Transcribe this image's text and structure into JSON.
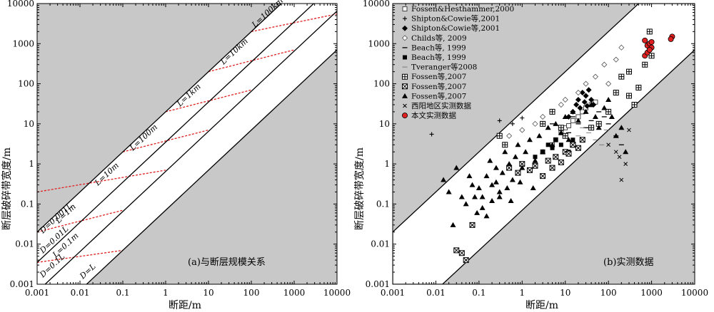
{
  "chart_data": [
    {
      "type": "line",
      "xlabel": "断距/m",
      "ylabel": "断层破碎带宽度/m",
      "xscale": "log",
      "yscale": "log",
      "xlim": [
        0.001,
        10000
      ],
      "ylim": [
        0.001,
        10000
      ],
      "ticks": [
        "0.001",
        "0.01",
        "0.1",
        "1",
        "10",
        "100",
        "1000",
        "10000"
      ],
      "caption": "(a)与断层规模关系",
      "colors": {
        "background": "#c8c8c8",
        "band": "#ffffff",
        "line": "#000000",
        "dashed": "#e02020"
      },
      "boundary_lines": [
        {
          "label": "D=0.001L",
          "ratio": 20,
          "x_range": [
            0.001,
            1000
          ]
        },
        {
          "label": "D=0.01L",
          "ratio": 3.5,
          "x_range": [
            0.001,
            3000
          ]
        },
        {
          "label": "D=0.1L",
          "ratio": 0.65,
          "x_range": [
            0.001,
            10000
          ]
        },
        {
          "label": "D=L",
          "ratio": 0.07,
          "x_range": [
            0.014,
            10000
          ]
        }
      ],
      "length_lines": [
        {
          "label": "L=1m",
          "x": [
            0.001,
            0.1
          ],
          "y": [
            0.02,
            0.07
          ]
        },
        {
          "label": "L=0.1m",
          "x": [
            0.001,
            0.1
          ],
          "y": [
            0.0035,
            0.007
          ]
        },
        {
          "label": "L=10m",
          "x": [
            0.001,
            1
          ],
          "y": [
            0.2,
            0.7
          ]
        },
        {
          "label": "L=100m",
          "x": [
            0.1,
            10
          ],
          "y": [
            2,
            7
          ]
        },
        {
          "label": "L=1km",
          "x": [
            1,
            100
          ],
          "y": [
            20,
            70
          ]
        },
        {
          "label": "L=10km",
          "x": [
            10,
            1000
          ],
          "y": [
            200,
            700
          ]
        },
        {
          "label": "L=100km",
          "x": [
            100,
            10000
          ],
          "y": [
            2000,
            5500
          ]
        }
      ]
    },
    {
      "type": "scatter",
      "xlabel": "断距/m",
      "ylabel": "断层破碎带宽度/m",
      "xscale": "log",
      "yscale": "log",
      "xlim": [
        0.001,
        10000
      ],
      "ylim": [
        0.001,
        10000
      ],
      "ticks": [
        "0.001",
        "0.01",
        "0.1",
        "1",
        "10",
        "100",
        "1000",
        "10000"
      ],
      "caption": "(b)实测数据",
      "colors": {
        "background": "#c8c8c8",
        "band": "#ffffff",
        "red_marker": "#e02020"
      },
      "band": {
        "upper_ratio": 20,
        "lower_ratio": 0.07
      },
      "legend_position": "top-left",
      "series": [
        {
          "name": "Fossen&Hesthammer,2000",
          "marker": "open-square",
          "points": [
            [
              3,
              2
            ],
            [
              5,
              3
            ],
            [
              8,
              6
            ],
            [
              10,
              8
            ],
            [
              15,
              12
            ],
            [
              20,
              15
            ],
            [
              25,
              20
            ],
            [
              30,
              25
            ],
            [
              40,
              30
            ],
            [
              50,
              35
            ],
            [
              6,
              4
            ],
            [
              12,
              9
            ]
          ]
        },
        {
          "name": "Shipton&Cowie等,2001",
          "marker": "plus",
          "points": [
            [
              0.008,
              5.5
            ],
            [
              0.3,
              12
            ],
            [
              0.6,
              10
            ],
            [
              1,
              14
            ]
          ]
        },
        {
          "name": "Shipton&Cowie等,2001",
          "marker": "filled-diamond",
          "points": [
            [
              15,
              20
            ],
            [
              20,
              40
            ],
            [
              25,
              60
            ],
            [
              30,
              50
            ],
            [
              35,
              70
            ],
            [
              40,
              40
            ],
            [
              18,
              30
            ],
            [
              22,
              25
            ],
            [
              28,
              35
            ],
            [
              32,
              28
            ],
            [
              12,
              15
            ],
            [
              45,
              30
            ]
          ]
        },
        {
          "name": "Childs等, 2009",
          "marker": "open-diamond",
          "points": [
            [
              0.5,
              5
            ],
            [
              1,
              7
            ],
            [
              2,
              10
            ],
            [
              3,
              15
            ],
            [
              5,
              20
            ],
            [
              8,
              30
            ],
            [
              10,
              40
            ],
            [
              20,
              60
            ],
            [
              30,
              100
            ],
            [
              50,
              150
            ],
            [
              80,
              300
            ],
            [
              100,
              100
            ],
            [
              150,
              400
            ],
            [
              200,
              800
            ]
          ]
        },
        {
          "name": "Beach等, 1999",
          "marker": "dash",
          "points": [
            [
              5,
              10
            ],
            [
              8,
              8
            ],
            [
              12,
              6
            ],
            [
              15,
              15
            ],
            [
              20,
              10
            ],
            [
              30,
              8
            ],
            [
              40,
              12
            ],
            [
              60,
              20
            ],
            [
              80,
              15
            ],
            [
              100,
              10
            ],
            [
              150,
              5
            ],
            [
              200,
              3
            ]
          ]
        },
        {
          "name": "Beach等, 1999",
          "marker": "filled-square",
          "points": [
            [
              2,
              1.5
            ],
            [
              3,
              2
            ],
            [
              4,
              3
            ],
            [
              5,
              2.5
            ],
            [
              6,
              4
            ],
            [
              8,
              3
            ],
            [
              10,
              5
            ],
            [
              12,
              2
            ],
            [
              15,
              4
            ]
          ]
        },
        {
          "name": "Tveranger等2008",
          "marker": "thin-dash",
          "points": [
            [
              20,
              5
            ],
            [
              25,
              8
            ],
            [
              35,
              6
            ],
            [
              50,
              4
            ],
            [
              70,
              3
            ],
            [
              90,
              7
            ]
          ]
        },
        {
          "name": "Fossen等,2007",
          "marker": "box-plus",
          "points": [
            [
              150,
              60
            ],
            [
              200,
              150
            ],
            [
              300,
              50
            ],
            [
              400,
              30
            ],
            [
              500,
              80
            ],
            [
              700,
              300
            ],
            [
              900,
              2000
            ],
            [
              1000,
              500
            ],
            [
              5,
              20
            ],
            [
              3,
              10
            ],
            [
              8,
              8
            ],
            [
              10,
              5
            ],
            [
              15,
              3
            ],
            [
              40,
              8
            ],
            [
              60,
              10
            ],
            [
              100,
              20
            ],
            [
              300,
              200
            ],
            [
              0.4,
              3
            ],
            [
              0.3,
              5
            ]
          ]
        },
        {
          "name": "Fossen等,2007",
          "marker": "box-x",
          "points": [
            [
              0.03,
              0.007
            ],
            [
              0.04,
              0.006
            ],
            [
              0.05,
              0.004
            ],
            [
              0.07,
              0.03
            ],
            [
              0.5,
              0.8
            ],
            [
              0.8,
              0.6
            ],
            [
              1,
              1
            ],
            [
              1.5,
              0.7
            ],
            [
              2,
              0.9
            ],
            [
              3,
              0.5
            ],
            [
              4,
              1.2
            ],
            [
              5,
              0.8
            ],
            [
              6,
              1.5
            ],
            [
              8,
              1.1
            ],
            [
              10,
              2
            ],
            [
              12,
              1.8
            ],
            [
              15,
              3
            ],
            [
              20,
              2.5
            ],
            [
              25,
              4
            ]
          ]
        },
        {
          "name": "Fossen等,2007",
          "marker": "filled-triangle",
          "points": [
            [
              0.015,
              0.4
            ],
            [
              0.02,
              0.2
            ],
            [
              0.025,
              0.03
            ],
            [
              0.03,
              0.8
            ],
            [
              0.04,
              0.15
            ],
            [
              0.05,
              0.1
            ],
            [
              0.06,
              0.5
            ],
            [
              0.07,
              0.3
            ],
            [
              0.08,
              0.15
            ],
            [
              0.1,
              0.25
            ],
            [
              0.12,
              0.08
            ],
            [
              0.15,
              0.5
            ],
            [
              0.18,
              1.2
            ],
            [
              0.2,
              0.3
            ],
            [
              0.25,
              0.8
            ],
            [
              0.3,
              0.15
            ],
            [
              0.35,
              0.6
            ],
            [
              0.4,
              2
            ],
            [
              0.5,
              1
            ],
            [
              0.6,
              0.4
            ],
            [
              0.7,
              1.5
            ],
            [
              0.8,
              3
            ],
            [
              1,
              0.8
            ],
            [
              1.2,
              2
            ],
            [
              1.5,
              4
            ],
            [
              2,
              1.2
            ],
            [
              2.5,
              5
            ],
            [
              3,
              2
            ],
            [
              4,
              8
            ],
            [
              5,
              3
            ],
            [
              6,
              10
            ],
            [
              8,
              6
            ],
            [
              10,
              15
            ],
            [
              12,
              4
            ],
            [
              15,
              20
            ],
            [
              20,
              12
            ],
            [
              30,
              20
            ],
            [
              40,
              30
            ],
            [
              50,
              15
            ],
            [
              60,
              8
            ],
            [
              80,
              25
            ],
            [
              100,
              40
            ],
            [
              120,
              15
            ],
            [
              150,
              5
            ],
            [
              200,
              8
            ],
            [
              250,
              2
            ],
            [
              0.15,
              0.05
            ],
            [
              0.2,
              0.12
            ],
            [
              0.09,
              0.06
            ],
            [
              0.12,
              0.15
            ],
            [
              0.25,
              0.35
            ],
            [
              0.3,
              0.2
            ],
            [
              0.45,
              0.25
            ],
            [
              0.55,
              0.12
            ],
            [
              0.9,
              0.35
            ],
            [
              1.8,
              0.25
            ]
          ]
        },
        {
          "name": "西阳地区实测数据",
          "marker": "x",
          "points": [
            [
              200,
              0.4
            ],
            [
              150,
              2
            ],
            [
              100,
              3
            ],
            [
              300,
              7
            ],
            [
              250,
              1
            ],
            [
              180,
              1.5
            ]
          ]
        },
        {
          "name": "本文实测数据",
          "marker": "red-circle",
          "points": [
            [
              700,
              1200
            ],
            [
              800,
              900
            ],
            [
              900,
              1000
            ],
            [
              1000,
              800
            ],
            [
              700,
              500
            ],
            [
              800,
              600
            ],
            [
              900,
              700
            ],
            [
              1000,
              1100
            ],
            [
              3000,
              1500
            ],
            [
              2800,
              1300
            ]
          ]
        }
      ]
    }
  ]
}
